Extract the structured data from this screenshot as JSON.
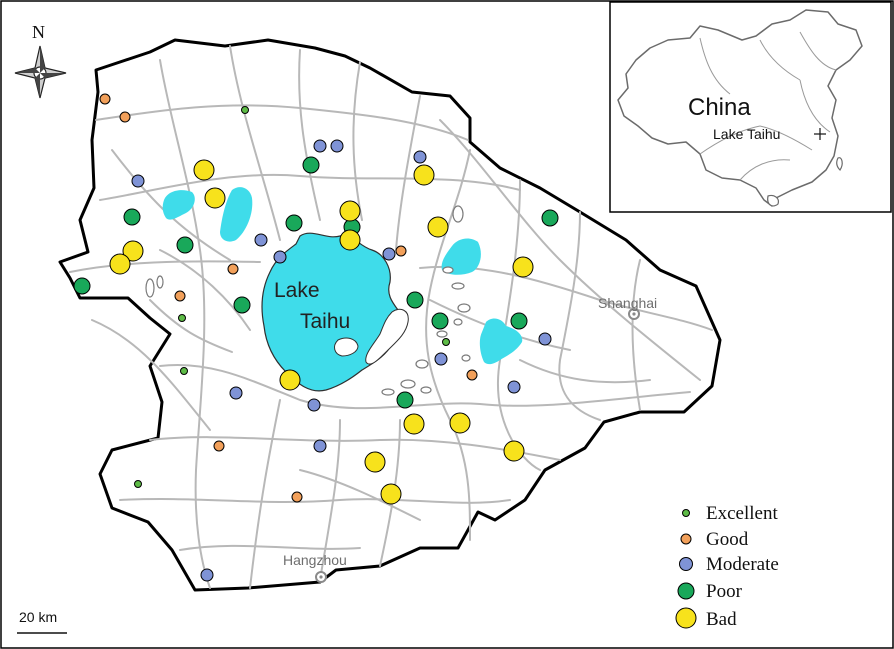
{
  "map": {
    "north_label": "N",
    "lake_label_line1": "Lake",
    "lake_label_line2": "Taihu",
    "cities": [
      {
        "name": "Shanghai"
      },
      {
        "name": "Hangzhou"
      }
    ],
    "scale_bar_label": "20 km",
    "colors": {
      "boundary": "#000000",
      "roads": "#b8b8b8",
      "water": "#3fdcea",
      "excellent": "#5dbb46",
      "good": "#f2a05a",
      "moderate": "#7f93d6",
      "poor": "#19a85a",
      "bad": "#f7e21c"
    }
  },
  "inset": {
    "country_label": "China",
    "marker_label": "Lake Taihu"
  },
  "legend": {
    "items": [
      {
        "key": "excellent",
        "label": "Excellent"
      },
      {
        "key": "good",
        "label": "Good"
      },
      {
        "key": "moderate",
        "label": "Moderate"
      },
      {
        "key": "poor",
        "label": "Poor"
      },
      {
        "key": "bad",
        "label": "Bad"
      }
    ]
  }
}
